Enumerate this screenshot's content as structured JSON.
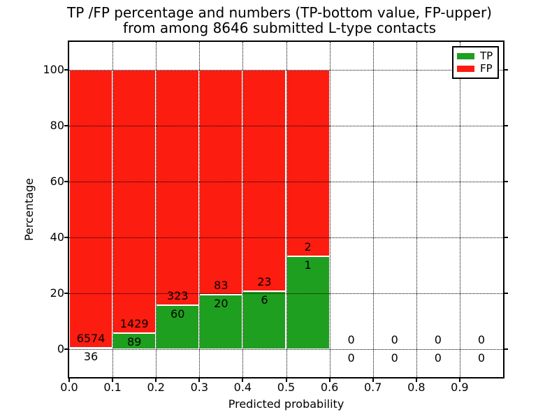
{
  "title": {
    "line1": "TP /FP percentage and numbers (TP-bottom value, FP-upper)",
    "line2": "from among 8646 submitted L-type contacts"
  },
  "chart_data": {
    "type": "bar",
    "stacked": true,
    "title": "TP /FP percentage and numbers (TP-bottom value, FP-upper) from among 8646 submitted L-type contacts",
    "xlabel": "Predicted probability",
    "ylabel": "Percentage",
    "xlim": [
      0.0,
      1.0
    ],
    "ylim": [
      -10,
      110
    ],
    "x_tick_labels": [
      "0.0",
      "0.1",
      "0.2",
      "0.3",
      "0.4",
      "0.5",
      "0.6",
      "0.7",
      "0.8",
      "0.9"
    ],
    "y_tick_values": [
      0,
      20,
      40,
      60,
      80,
      100
    ],
    "grid": "dotted",
    "legend_position": "upper right",
    "total_submitted": 8646,
    "tp_color": "#1f9f1f",
    "fp_color": "#fc1c10",
    "bar_edge_color": "#ffffff",
    "legend": [
      {
        "label": "TP",
        "series": "tp"
      },
      {
        "label": "FP",
        "series": "fp"
      }
    ],
    "bins": [
      {
        "range": "0.0-0.1",
        "tp": 36,
        "fp": 6574
      },
      {
        "range": "0.1-0.2",
        "tp": 89,
        "fp": 1429
      },
      {
        "range": "0.2-0.3",
        "tp": 60,
        "fp": 323
      },
      {
        "range": "0.3-0.4",
        "tp": 20,
        "fp": 83
      },
      {
        "range": "0.4-0.5",
        "tp": 6,
        "fp": 23
      },
      {
        "range": "0.5-0.6",
        "tp": 1,
        "fp": 2
      },
      {
        "range": "0.6-0.7",
        "tp": 0,
        "fp": 0
      },
      {
        "range": "0.7-0.8",
        "tp": 0,
        "fp": 0
      },
      {
        "range": "0.8-0.9",
        "tp": 0,
        "fp": 0
      },
      {
        "range": "0.9-1.0",
        "tp": 0,
        "fp": 0
      }
    ]
  }
}
